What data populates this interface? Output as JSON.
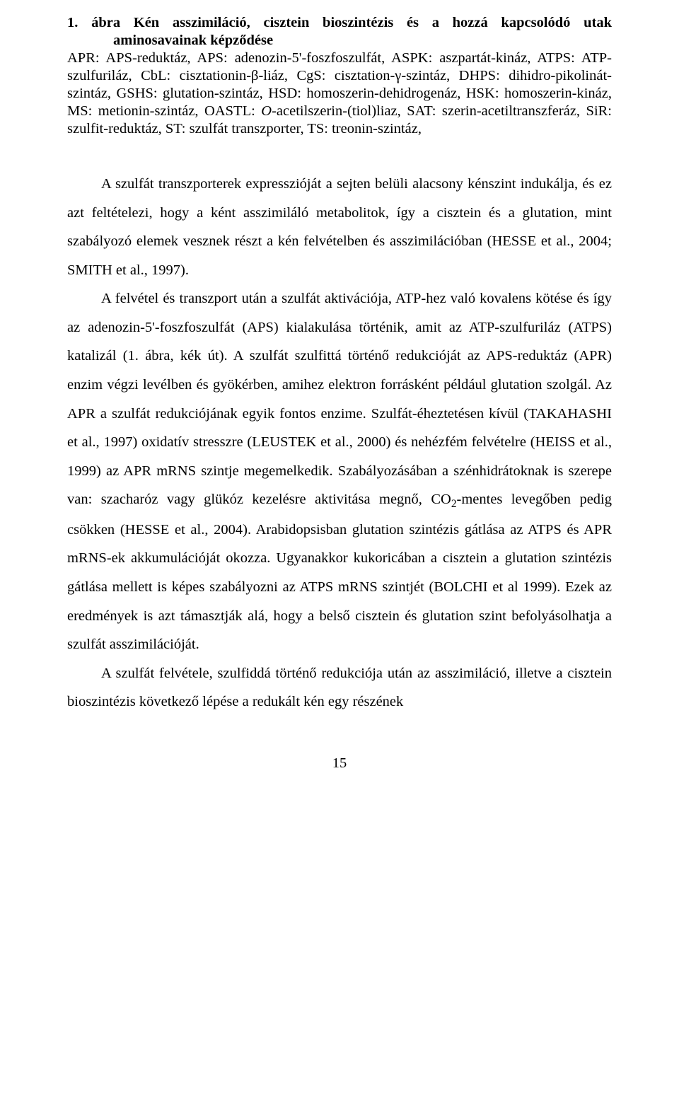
{
  "meta": {
    "page_number": "15",
    "font_family": "Times New Roman",
    "text_color": "#000000",
    "background_color": "#ffffff",
    "body_font_size_pt": 12,
    "line_spacing": 2.0
  },
  "caption": {
    "title_bold": "1. ábra Kén asszimiláció, cisztein bioszintézis és a hozzá kapcsolódó utak aminosavainak képződése",
    "abbrev": "APR: APS-reduktáz, APS: adenozin-5'-foszfoszulfát, ASPK: aszpartát-kináz, ATPS: ATP-szulfuriláz, CbL: cisztationin-β-liáz, CgS: cisztation-γ-szintáz, DHPS: dihidro-pikolinát-szintáz, GSHS: glutation-szintáz, HSD: homoszerin-dehidrogenáz, HSK: homoszerin-kináz, MS: metionin-szintáz, OASTL: ",
    "abbrev_italic": "O",
    "abbrev_after": "-acetilszerin-(tiol)liaz, SAT: szerin-acetiltranszferáz, SiR: szulfit-reduktáz, ST: szulfát transzporter, TS: treonin-szintáz,"
  },
  "body": {
    "para1": "A szulfát transzporterek expresszióját a sejten belüli alacsony kénszint indukálja, és ez azt feltételezi, hogy a ként asszimiláló metabolitok, így a cisztein és a glutation, mint szabályozó elemek vesznek részt a kén felvételben és asszimilációban (HESSE et al., 2004; SMITH et al., 1997).",
    "para2_a": "A felvétel és transzport után a szulfát aktivációja, ATP-hez való kovalens kötése és így az adenozin-5'-foszfoszulfát (APS) kialakulása történik, amit az ATP-szulfuriláz (ATPS) katalizál (1. ábra, kék út). A szulfát szulfittá történő redukcióját az APS-reduktáz (APR) enzim végzi levélben és gyökérben, amihez elektron forrásként például glutation szolgál. Az APR a szulfát redukciójának egyik fontos enzime. Szulfát-éheztetésen kívül (TAKAHASHI et al., 1997) oxidatív stresszre (LEUSTEK et al., 2000) és nehézfém felvételre (HEISS et al., 1999) az APR mRNS szintje megemelkedik. Szabályozásában a szénhidrátoknak is szerepe van: szacharóz vagy glükóz kezelésre aktivitása megnő, CO",
    "para2_sub": "2",
    "para2_b": "-mentes levegőben pedig csökken (HESSE et al., 2004). Arabidopsisban glutation szintézis gátlása az ATPS és APR mRNS-ek akkumulációját okozza. Ugyanakkor kukoricában a cisztein a glutation szintézis gátlása mellett is képes szabályozni az ATPS mRNS szintjét (BOLCHI et al 1999). Ezek az eredmények is azt támasztják alá, hogy a belső cisztein és glutation szint befolyásolhatja a szulfát asszimilációját.",
    "para3": "A szulfát felvétele, szulfiddá történő redukciója után az asszimiláció, illetve a cisztein bioszintézis következő lépése a redukált kén egy részének"
  }
}
